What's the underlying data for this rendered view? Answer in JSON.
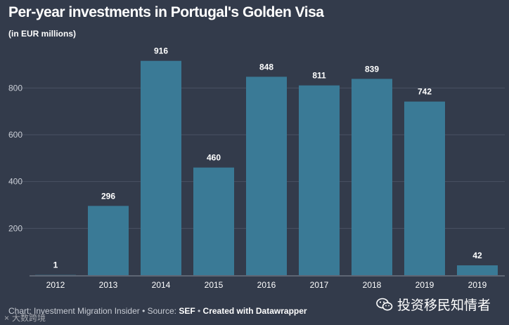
{
  "chart_data": {
    "type": "bar",
    "title": "Per-year investments in Portugal's Golden Visa",
    "subtitle": "(in EUR millions)",
    "categories": [
      "2012",
      "2013",
      "2014",
      "2015",
      "2016",
      "2017",
      "2018",
      "2019",
      "2019"
    ],
    "values": [
      1,
      296,
      916,
      460,
      848,
      811,
      839,
      742,
      42
    ],
    "value_labels": [
      "1",
      "296",
      "916",
      "460",
      "848",
      "811",
      "839",
      "742",
      "42"
    ],
    "y_ticks": [
      200,
      400,
      600,
      800
    ],
    "y_tick_labels": [
      "200",
      "400",
      "600",
      "800"
    ],
    "ylim": [
      0,
      916
    ],
    "xlabel": "",
    "ylabel": "",
    "grid": true,
    "bar_color": "#3a7a96"
  },
  "footer": {
    "prefix": "Chart: Investment Migration Insider • Source: ",
    "source": "SEF",
    "sep": " • ",
    "credit": "Created with Datawrapper"
  },
  "watermark": {
    "left_close": "×",
    "left_text": "大数跨境",
    "right_icon": "wechat-icon",
    "right_text": "投资移民知情者"
  },
  "colors": {
    "background": "#333b4b",
    "bar": "#3a7a96",
    "grid": "#4a5263",
    "text": "#ffffff",
    "muted_text": "#c8ccd4"
  }
}
